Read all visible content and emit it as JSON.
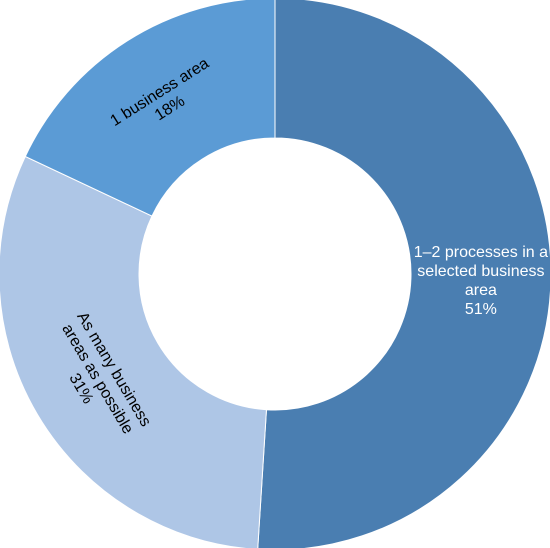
{
  "chart_data": {
    "type": "pie",
    "variant": "donut",
    "title": "",
    "slices": [
      {
        "label_lines": [
          "1–2 processes in a",
          "selected business",
          "area"
        ],
        "value": 51,
        "value_label": "51%",
        "color": "#4A7EB1",
        "text_color": "#FFFFFF"
      },
      {
        "label_lines": [
          "As many business",
          "areas as possible"
        ],
        "value": 31,
        "value_label": "31%",
        "color": "#AEC6E6",
        "text_color": "#000000"
      },
      {
        "label_lines": [
          "1 business area"
        ],
        "value": 18,
        "value_label": "18%",
        "color": "#5B9BD5",
        "text_color": "#000000"
      }
    ],
    "legend": "none",
    "separator_color": "#FFFFFF"
  }
}
